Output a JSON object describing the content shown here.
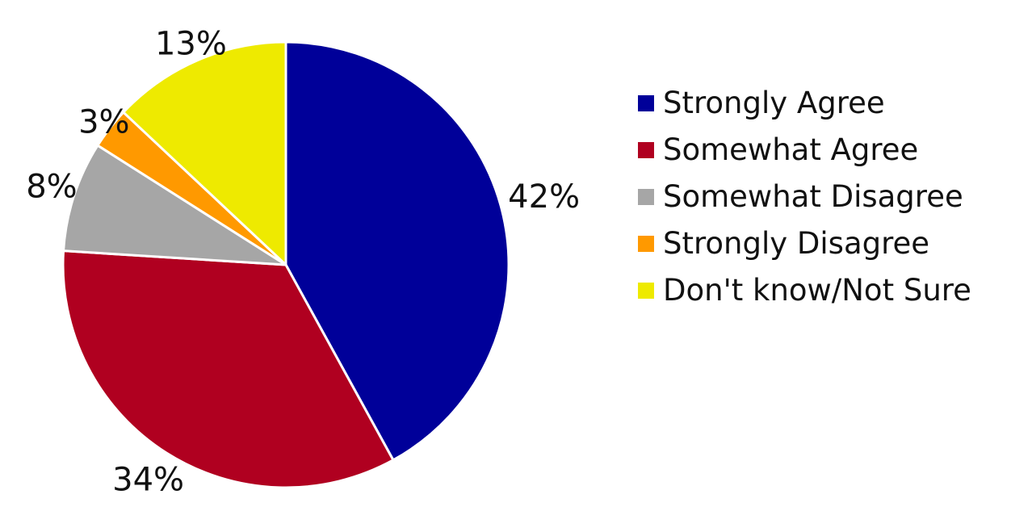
{
  "chart_data": {
    "type": "pie",
    "title": "",
    "slices": [
      {
        "label": "Strongly Agree",
        "value": 42,
        "value_label": "42%",
        "color": "#000099"
      },
      {
        "label": "Somewhat Agree",
        "value": 34,
        "value_label": "34%",
        "color": "#b00020"
      },
      {
        "label": "Somewhat Disagree",
        "value": 8,
        "value_label": "8%",
        "color": "#a6a6a6"
      },
      {
        "label": "Strongly Disagree",
        "value": 3,
        "value_label": "3%",
        "color": "#ff9900"
      },
      {
        "label": "Don't know/Not Sure",
        "value": 13,
        "value_label": "13%",
        "color": "#eeea00"
      }
    ],
    "start": "12 o'clock",
    "direction": "clockwise",
    "legend_position": "right"
  }
}
